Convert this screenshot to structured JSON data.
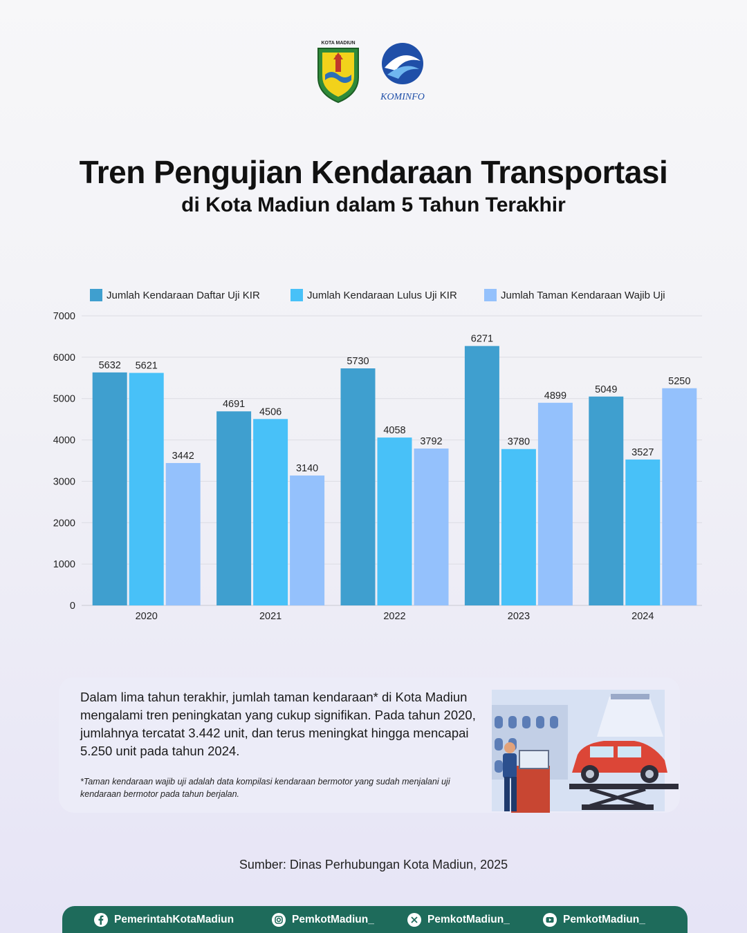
{
  "header": {
    "logo_left_caption": "KOTA MADIUN",
    "logo_right_caption": "KOMINFO",
    "title_line1": "Tren Pengujian Kendaraan Transportasi",
    "title_line2": "di Kota Madiun dalam 5 Tahun Terakhir"
  },
  "colors": {
    "series1": "#3f9fcf",
    "series2": "#48c1f8",
    "series3": "#94c1fc",
    "footer": "#1e6b5b",
    "card": "#ececf8"
  },
  "chart_data": {
    "type": "bar",
    "categories": [
      "2020",
      "2021",
      "2022",
      "2023",
      "2024"
    ],
    "series": [
      {
        "name": "Jumlah Kendaraan Daftar Uji KIR",
        "values": [
          5632,
          4691,
          5730,
          6271,
          5049
        ]
      },
      {
        "name": "Jumlah Kendaraan Lulus Uji KIR",
        "values": [
          5621,
          4506,
          4058,
          3780,
          3527
        ]
      },
      {
        "name": "Jumlah Taman Kendaraan Wajib Uji",
        "values": [
          3442,
          3140,
          3792,
          4899,
          5250
        ]
      }
    ],
    "yticks": [
      0,
      1000,
      2000,
      3000,
      4000,
      5000,
      6000,
      7000
    ],
    "ylim": [
      0,
      7000
    ],
    "grid": true,
    "legend": "top",
    "title": "",
    "xlabel": "",
    "ylabel": ""
  },
  "info": {
    "text": "Dalam lima tahun terakhir, jumlah taman kendaraan* di Kota Madiun mengalami tren peningkatan yang cukup signifikan. Pada tahun 2020, jumlahnya tercatat 3.442 unit, dan terus meningkat hingga mencapai 5.250 unit pada tahun 2024.",
    "note": "*Taman kendaraan wajib uji adalah data kompilasi kendaraan bermotor yang sudah menjalani uji kendaraan bermotor pada tahun berjalan."
  },
  "source": "Sumber: Dinas Perhubungan Kota Madiun, 2025",
  "footer": {
    "socials": [
      {
        "icon": "facebook-icon",
        "label": "PemerintahKotaMadiun"
      },
      {
        "icon": "instagram-icon",
        "label": "PemkotMadiun_"
      },
      {
        "icon": "x-icon",
        "label": "PemkotMadiun_"
      },
      {
        "icon": "youtube-icon",
        "label": "PemkotMadiun_"
      }
    ]
  }
}
